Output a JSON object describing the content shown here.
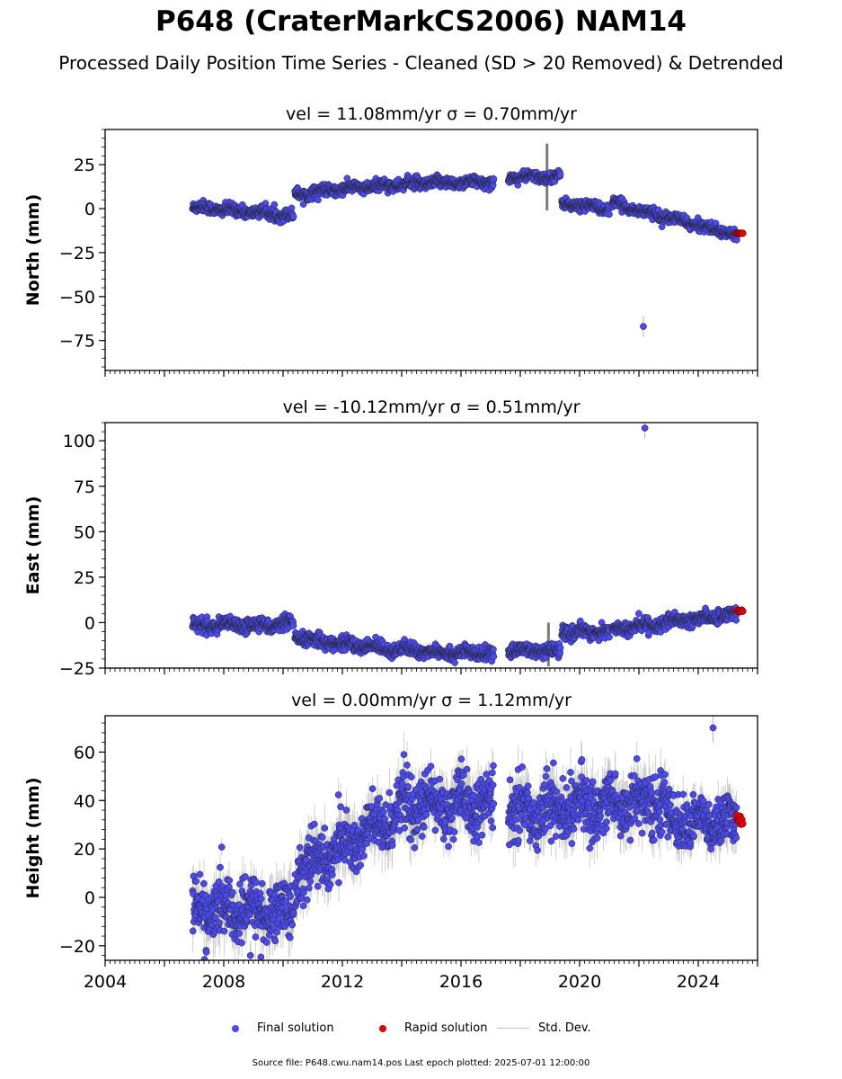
{
  "title": "P648 (CraterMarkCS2006) NAM14",
  "subtitle": "Processed Daily Position Time Series - Cleaned (SD > 20 Removed) & Detrended",
  "footer": "Source file: P648.cwu.nam14.pos  Last epoch plotted: 2025-07-01 12:00:00",
  "legend": {
    "final_label": "Final solution",
    "rapid_label": "Rapid solution",
    "std_label": "Std. Dev."
  },
  "colors": {
    "final": "#4a4af0",
    "rapid": "#e00000",
    "std": "#bdbdbd",
    "marker_edge": "#222222"
  },
  "chart_data": [
    {
      "type": "scatter",
      "panel": "north",
      "title": "vel = 11.08mm/yr   σ = 0.70mm/yr",
      "ylabel": "North (mm)",
      "xlim": [
        2004,
        2026
      ],
      "ylim": [
        -92,
        45
      ],
      "yticks": [
        25,
        0,
        -25,
        -50,
        -75
      ],
      "segments": [
        {
          "x": [
            2006.95,
            2010.35
          ],
          "y": [
            1,
            -4
          ],
          "noise": 1.6
        },
        {
          "x": [
            2010.4,
            2017.1
          ],
          "y": [
            8,
            15
          ],
          "curve": 2,
          "noise": 1.6
        },
        {
          "x": [
            2017.6,
            2019.35
          ],
          "y": [
            18,
            18
          ],
          "noise": 1.4
        },
        {
          "x": [
            2019.4,
            2021.0
          ],
          "y": [
            3,
            0
          ],
          "noise": 1.5
        },
        {
          "x": [
            2021.1,
            2025.3
          ],
          "y": [
            3,
            -15
          ],
          "noise": 1.4
        }
      ],
      "outliers": [
        {
          "x": 2022.15,
          "y": -67
        }
      ],
      "gap_spike": {
        "x": 2018.9,
        "lo": -1,
        "hi": 37
      },
      "rapid": {
        "x": [
          2025.3,
          2025.5
        ],
        "y": [
          -14,
          -14
        ]
      }
    },
    {
      "type": "scatter",
      "panel": "east",
      "title": "vel = -10.12mm/yr   σ = 0.51mm/yr",
      "ylabel": "East (mm)",
      "xlim": [
        2004,
        2026
      ],
      "ylim": [
        -25,
        110
      ],
      "yticks": [
        100,
        75,
        50,
        25,
        0,
        -25
      ],
      "segments": [
        {
          "x": [
            2006.95,
            2010.35
          ],
          "y": [
            -2,
            -1
          ],
          "noise": 1.8
        },
        {
          "x": [
            2010.4,
            2017.1
          ],
          "y": [
            -8,
            -17
          ],
          "curve": -2,
          "noise": 1.8
        },
        {
          "x": [
            2017.6,
            2019.35
          ],
          "y": [
            -15,
            -16
          ],
          "noise": 1.8
        },
        {
          "x": [
            2019.4,
            2021.0
          ],
          "y": [
            -5,
            -5
          ],
          "noise": 1.8
        },
        {
          "x": [
            2021.1,
            2025.3
          ],
          "y": [
            -4,
            5
          ],
          "noise": 1.8
        }
      ],
      "outliers": [
        {
          "x": 2022.2,
          "y": 107
        }
      ],
      "gap_spike": {
        "x": 2018.95,
        "lo": -24,
        "hi": 0
      },
      "rapid": {
        "x": [
          2025.3,
          2025.5
        ],
        "y": [
          6,
          7
        ]
      }
    },
    {
      "type": "scatter",
      "panel": "height",
      "title": "vel = 0.00mm/yr   σ = 1.12mm/yr",
      "ylabel": "Height (mm)",
      "xlim": [
        2004,
        2026
      ],
      "ylim": [
        -26,
        75
      ],
      "yticks": [
        60,
        40,
        20,
        0,
        -20
      ],
      "xticks": [
        2004,
        2008,
        2012,
        2016,
        2020,
        2024
      ],
      "segments": [
        {
          "x": [
            2006.95,
            2010.35
          ],
          "y": [
            -5,
            -6
          ],
          "noise": 6
        },
        {
          "x": [
            2010.4,
            2013.8
          ],
          "y": [
            10,
            33
          ],
          "noise": 6
        },
        {
          "x": [
            2013.8,
            2017.1
          ],
          "y": [
            38,
            38
          ],
          "noise": 6
        },
        {
          "x": [
            2017.6,
            2022.9
          ],
          "y": [
            35,
            40
          ],
          "noise": 6
        },
        {
          "x": [
            2022.9,
            2025.3
          ],
          "y": [
            32,
            30
          ],
          "noise": 5
        }
      ],
      "outliers": [
        {
          "x": 2024.5,
          "y": 70
        },
        {
          "x": 2008.9,
          "y": -24
        }
      ],
      "rapid": {
        "x": [
          2025.3,
          2025.5
        ],
        "y": [
          28,
          36
        ]
      }
    }
  ]
}
